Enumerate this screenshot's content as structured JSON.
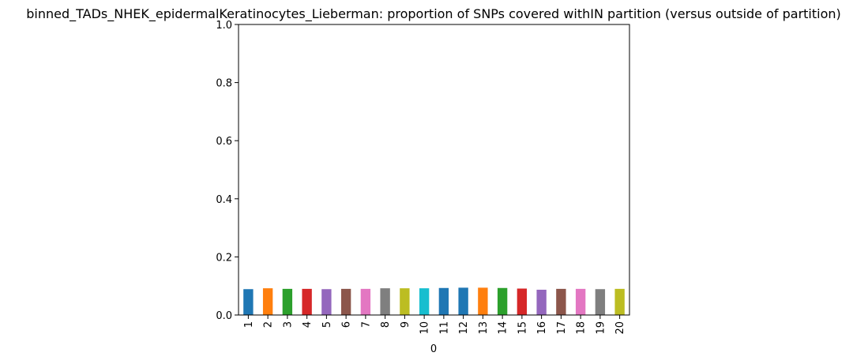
{
  "chart_data": {
    "type": "bar",
    "title": "binned_TADs_NHEK_epidermalKeratinocytes_Lieberman: proportion of SNPs covered withIN partition (versus outside of partition)",
    "xlabel": "0",
    "ylabel": "",
    "ylim": [
      0,
      1.0
    ],
    "yticks": [
      "0.0",
      "0.2",
      "0.4",
      "0.6",
      "0.8",
      "1.0"
    ],
    "categories": [
      "1",
      "2",
      "3",
      "4",
      "5",
      "6",
      "7",
      "8",
      "9",
      "10",
      "11",
      "12",
      "13",
      "14",
      "15",
      "16",
      "17",
      "18",
      "19",
      "20"
    ],
    "values": [
      0.089,
      0.092,
      0.09,
      0.09,
      0.089,
      0.09,
      0.09,
      0.092,
      0.092,
      0.092,
      0.093,
      0.094,
      0.094,
      0.093,
      0.091,
      0.087,
      0.09,
      0.09,
      0.089,
      0.09
    ],
    "bar_colors": [
      "#1f77b4",
      "#ff7f0e",
      "#2ca02c",
      "#d62728",
      "#9467bd",
      "#8c564b",
      "#e377c2",
      "#7f7f7f",
      "#bcbd22",
      "#17becf",
      "#1f77b4",
      "#1f77b4",
      "#ff7f0e",
      "#2ca02c",
      "#d62728",
      "#9467bd",
      "#8c564b",
      "#e377c2",
      "#7f7f7f",
      "#bcbd22"
    ],
    "grid": false,
    "legend": "none"
  }
}
